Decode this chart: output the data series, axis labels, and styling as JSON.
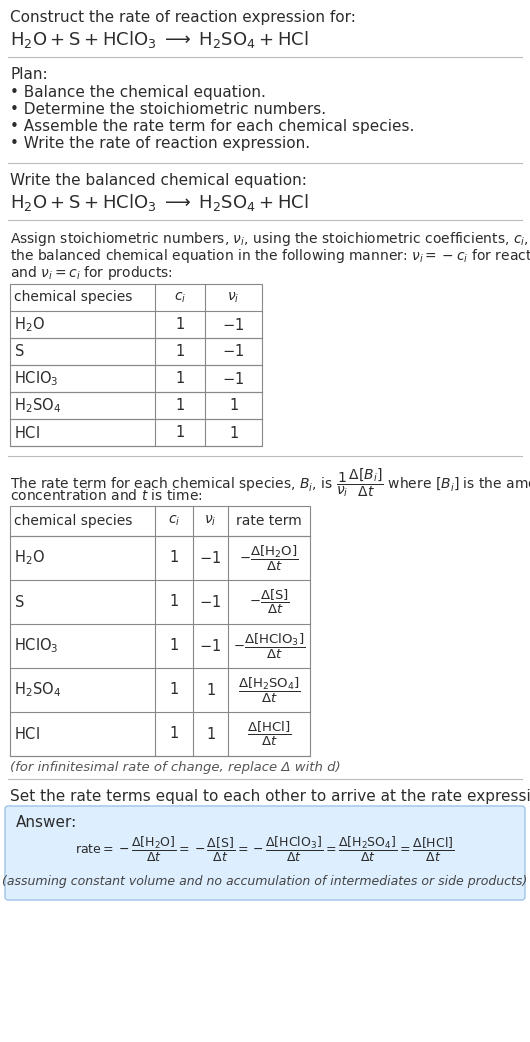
{
  "bg_color": "#ffffff",
  "text_color": "#2c2c2c",
  "title_line1": "Construct the rate of reaction expression for:",
  "plan_header": "Plan:",
  "plan_items": [
    "• Balance the chemical equation.",
    "• Determine the stoichiometric numbers.",
    "• Assemble the rate term for each chemical species.",
    "• Write the rate of reaction expression."
  ],
  "balanced_header": "Write the balanced chemical equation:",
  "stoich_intro_parts": [
    [
      "Assign stoichiometric numbers, ",
      "nu_i",
      ", using the stoichiometric coefficients, ",
      "c_i",
      ", from"
    ],
    [
      "the balanced chemical equation in the following manner: ",
      "nu_i_eq",
      " for reactants"
    ],
    [
      "and ",
      "nu_i2",
      " for products:"
    ]
  ],
  "rate_intro_line1": "The rate term for each chemical species, B_i, is where [B_i] is the amount",
  "rate_intro_line2": "concentration and t is time:",
  "set_equal_text": "Set the rate terms equal to each other to arrive at the rate expression:",
  "answer_box_color": "#ddeeff",
  "answer_border_color": "#a0c4e8",
  "answer_label": "Answer:",
  "answer_note": "(assuming constant volume and no accumulation of intermediates or side products)",
  "infinitesimal_note": "(for infinitesimal rate of change, replace Δ with d)",
  "divider_color": "#bbbbbb",
  "table_border_color": "#888888",
  "table1_species": [
    "H_2O",
    "S",
    "HClO_3",
    "H_2SO_4",
    "HCl"
  ],
  "table1_ci": [
    "1",
    "1",
    "1",
    "1",
    "1"
  ],
  "table1_ni": [
    "-1",
    "-1",
    "-1",
    "1",
    "1"
  ]
}
